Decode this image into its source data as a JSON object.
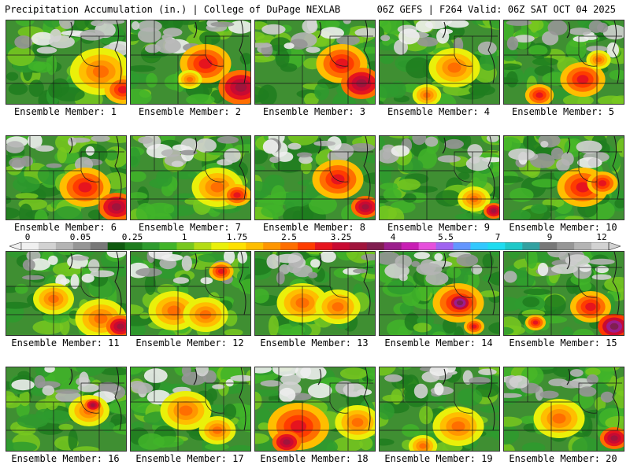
{
  "header": {
    "left": "Precipitation Accumulation (in.) | College of DuPage NEXLAB",
    "right": "06Z GEFS | F264 Valid: 06Z SAT OCT 04 2025"
  },
  "colorbar": {
    "labels": [
      "0",
      "0.05",
      "0.25",
      "1",
      "1.75",
      "2.5",
      "3.25",
      "4",
      "5.5",
      "7",
      "9",
      "12"
    ],
    "colors": [
      "#f0f0f0",
      "#d2d2d2",
      "#b4b4b4",
      "#969696",
      "#787878",
      "#0f5a0f",
      "#1e7d1e",
      "#2e9b2e",
      "#41b429",
      "#78c81e",
      "#b4dc14",
      "#eaf00a",
      "#ffe100",
      "#ffbe00",
      "#ff9600",
      "#ff6e00",
      "#ff3c00",
      "#e6141e",
      "#c80a32",
      "#a0143c",
      "#801e50",
      "#9b1e8c",
      "#c81eb4",
      "#e650dc",
      "#a064f0",
      "#6496ff",
      "#32c8ff",
      "#1edcf0",
      "#1ec8c8",
      "#32a0a0",
      "#787878",
      "#969696",
      "#b4b4b4",
      "#d2d2d2"
    ]
  },
  "members": [
    {
      "label": "Ensemble Member: 1"
    },
    {
      "label": "Ensemble Member: 2"
    },
    {
      "label": "Ensemble Member: 3"
    },
    {
      "label": "Ensemble Member: 4"
    },
    {
      "label": "Ensemble Member: 5"
    },
    {
      "label": "Ensemble Member: 6"
    },
    {
      "label": "Ensemble Member: 7"
    },
    {
      "label": "Ensemble Member: 8"
    },
    {
      "label": "Ensemble Member: 9"
    },
    {
      "label": "Ensemble Member: 10"
    },
    {
      "label": "Ensemble Member: 11"
    },
    {
      "label": "Ensemble Member: 12"
    },
    {
      "label": "Ensemble Member: 13"
    },
    {
      "label": "Ensemble Member: 14"
    },
    {
      "label": "Ensemble Member: 15"
    },
    {
      "label": "Ensemble Member: 16"
    },
    {
      "label": "Ensemble Member: 17"
    },
    {
      "label": "Ensemble Member: 18"
    },
    {
      "label": "Ensemble Member: 19"
    },
    {
      "label": "Ensemble Member: 20"
    }
  ]
}
